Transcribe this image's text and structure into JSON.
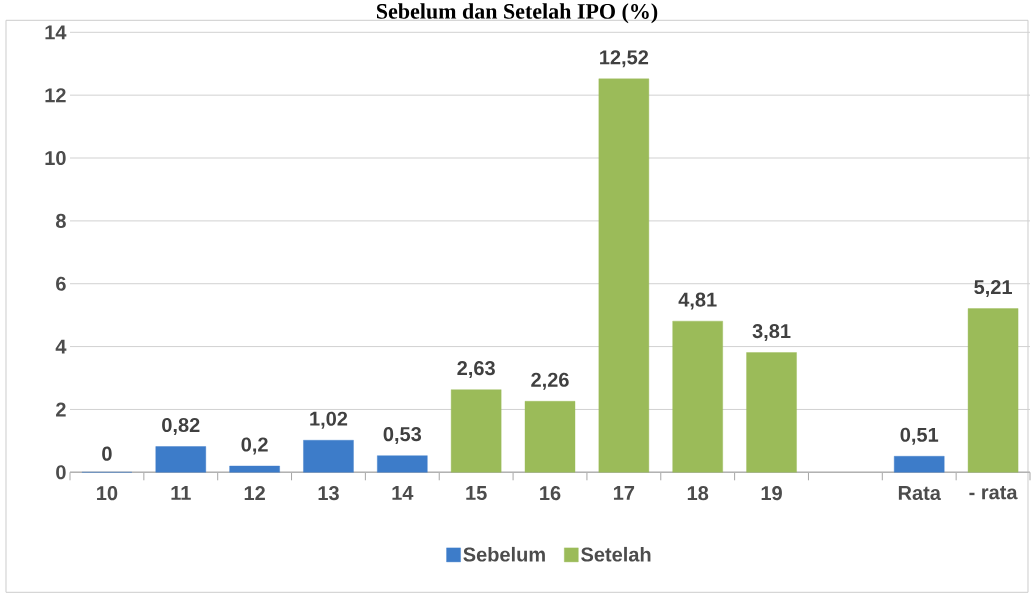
{
  "chart_data": {
    "type": "bar",
    "title": "Sebelum dan Setelah IPO (%)",
    "categories": [
      "10",
      "11",
      "12",
      "13",
      "14",
      "15",
      "16",
      "17",
      "18",
      "19",
      null,
      "Rata",
      "- rata"
    ],
    "series": [
      {
        "name": "Sebelum",
        "color": "#3d7cc9",
        "values": [
          0,
          0.82,
          0.2,
          1.02,
          0.53,
          null,
          null,
          null,
          null,
          null,
          null,
          0.51,
          null
        ],
        "value_labels": [
          "0",
          "0,82",
          "0,2",
          "1,02",
          "0,53",
          null,
          null,
          null,
          null,
          null,
          null,
          "0,51",
          null
        ]
      },
      {
        "name": "Setelah",
        "color": "#9bbb59",
        "values": [
          null,
          null,
          null,
          null,
          null,
          2.63,
          2.26,
          12.52,
          4.81,
          3.81,
          null,
          null,
          5.21
        ],
        "value_labels": [
          null,
          null,
          null,
          null,
          null,
          "2,63",
          "2,26",
          "12,52",
          "4,81",
          "3,81",
          null,
          null,
          "5,21"
        ]
      }
    ],
    "ylim": [
      0,
      14
    ],
    "yticks": [
      0,
      2,
      4,
      6,
      8,
      10,
      12,
      14
    ],
    "grid": "y",
    "legend": "bottom"
  }
}
